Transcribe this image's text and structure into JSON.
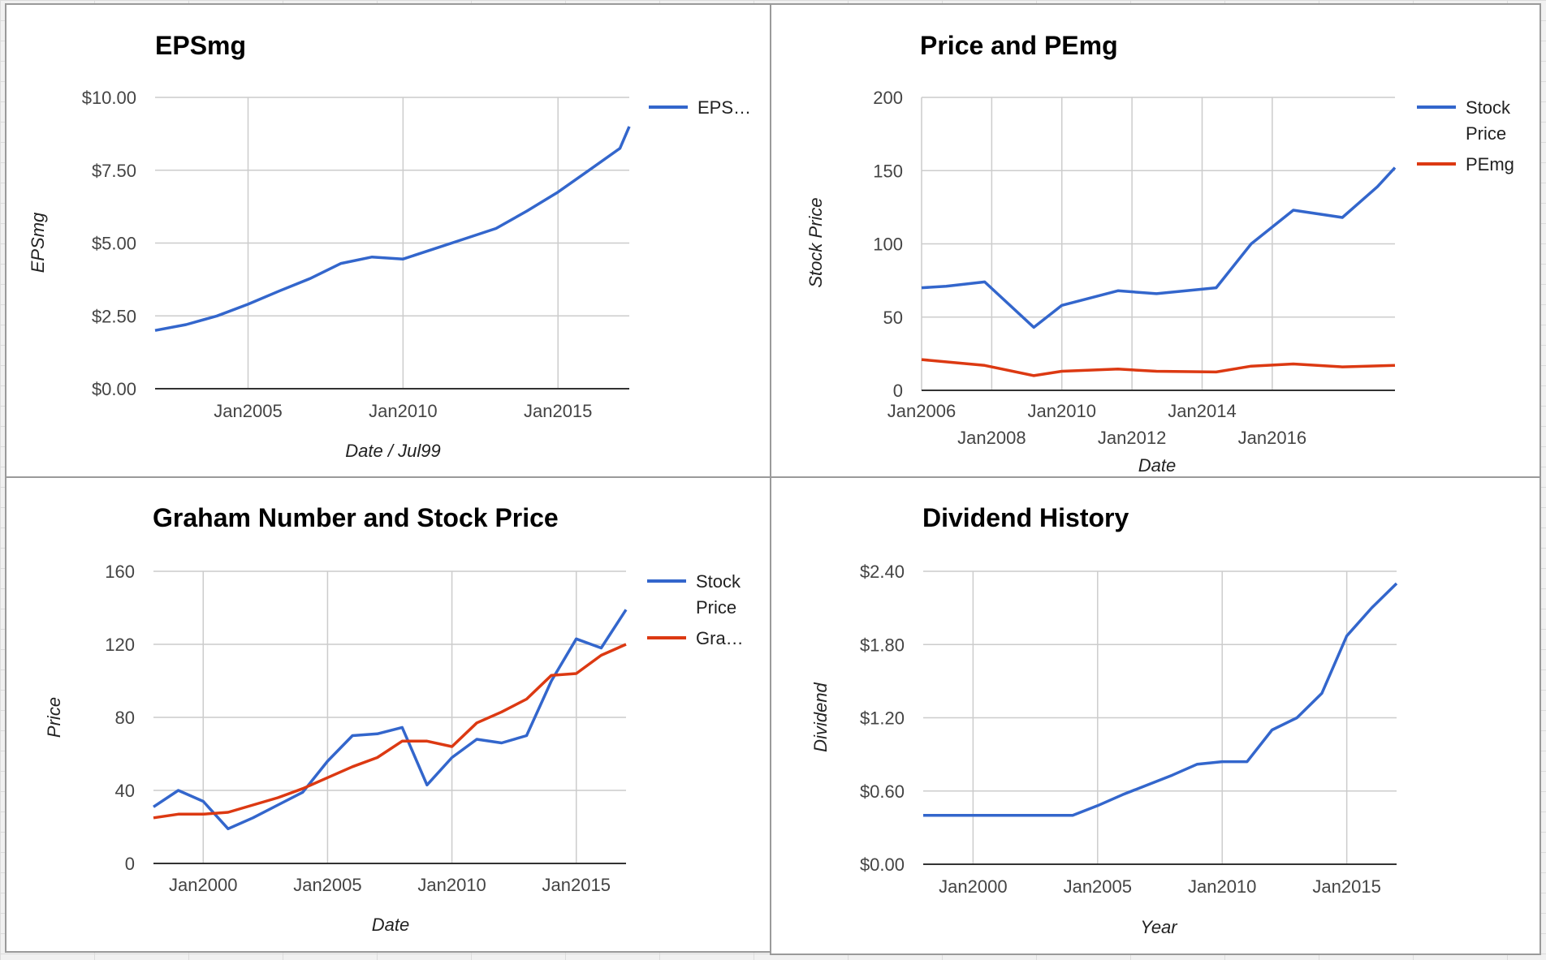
{
  "colors": {
    "blue": "#3366cc",
    "red": "#dc3912",
    "grid": "#cccccc",
    "axis": "#333333"
  },
  "chart_data": [
    {
      "type": "line",
      "title": "EPSmg",
      "xlabel": "Date / Jul99",
      "ylabel": "EPSmg",
      "x_ticks": [
        "Jan2005",
        "Jan2010",
        "Jan2015"
      ],
      "y_ticks": [
        "$0.00",
        "$2.50",
        "$5.00",
        "$7.50",
        "$10.00"
      ],
      "ylim": [
        0,
        10
      ],
      "legend_position": "right",
      "series": [
        {
          "name": "EPS…",
          "color": "#3366cc",
          "points": [
            [
              2002,
              2.0
            ],
            [
              2003,
              2.2
            ],
            [
              2004,
              2.5
            ],
            [
              2005,
              2.9
            ],
            [
              2006,
              3.35
            ],
            [
              2007,
              3.78
            ],
            [
              2008,
              4.3
            ],
            [
              2009,
              4.52
            ],
            [
              2010,
              4.45
            ],
            [
              2011,
              4.8
            ],
            [
              2012,
              5.15
            ],
            [
              2013,
              5.5
            ],
            [
              2014,
              6.1
            ],
            [
              2015,
              6.75
            ],
            [
              2016,
              7.5
            ],
            [
              2017,
              8.25
            ],
            [
              2017.3,
              9.0
            ]
          ]
        }
      ]
    },
    {
      "type": "line",
      "title": "Price and PEmg",
      "xlabel": "Date",
      "ylabel": "Stock Price",
      "x_ticks_row1": [
        "Jan2006",
        "Jan2010",
        "Jan2014"
      ],
      "x_ticks_row2": [
        "Jan2008",
        "Jan2012",
        "Jan2016"
      ],
      "y_ticks": [
        "0",
        "50",
        "100",
        "150",
        "200"
      ],
      "ylim": [
        0,
        200
      ],
      "legend_position": "right",
      "series": [
        {
          "name_lines": [
            "Stock",
            "Price"
          ],
          "color": "#3366cc",
          "points": [
            [
              2006,
              70
            ],
            [
              2006.7,
              71
            ],
            [
              2007.8,
              74
            ],
            [
              2009.2,
              43
            ],
            [
              2010,
              58
            ],
            [
              2011.6,
              68
            ],
            [
              2012.7,
              66
            ],
            [
              2014.4,
              70
            ],
            [
              2015.4,
              100
            ],
            [
              2016.6,
              123
            ],
            [
              2018,
              118
            ],
            [
              2019,
              139
            ],
            [
              2019.5,
              152
            ]
          ]
        },
        {
          "name": "PEmg",
          "color": "#dc3912",
          "points": [
            [
              2006,
              21
            ],
            [
              2007.8,
              17
            ],
            [
              2009.2,
              10
            ],
            [
              2010,
              13
            ],
            [
              2011.6,
              14.5
            ],
            [
              2012.7,
              13
            ],
            [
              2014.4,
              12.5
            ],
            [
              2015.4,
              16.5
            ],
            [
              2016.6,
              18
            ],
            [
              2018,
              16
            ],
            [
              2019.5,
              17
            ]
          ]
        }
      ]
    },
    {
      "type": "line",
      "title": "Graham Number and Stock Price",
      "xlabel": "Date",
      "ylabel": "Price",
      "x_ticks": [
        "Jan2000",
        "Jan2005",
        "Jan2010",
        "Jan2015"
      ],
      "y_ticks": [
        "0",
        "40",
        "80",
        "120",
        "160"
      ],
      "ylim": [
        0,
        160
      ],
      "legend_position": "right",
      "series": [
        {
          "name_lines": [
            "Stock",
            "Price"
          ],
          "color": "#3366cc",
          "points": [
            [
              1998,
              31
            ],
            [
              1999,
              40
            ],
            [
              2000,
              34
            ],
            [
              2001,
              19
            ],
            [
              2002,
              25
            ],
            [
              2003,
              32
            ],
            [
              2004,
              39
            ],
            [
              2005,
              56
            ],
            [
              2006,
              70
            ],
            [
              2007,
              71
            ],
            [
              2008,
              74.5
            ],
            [
              2009,
              43
            ],
            [
              2010,
              58
            ],
            [
              2011,
              68
            ],
            [
              2012,
              66
            ],
            [
              2013,
              70
            ],
            [
              2014,
              100
            ],
            [
              2015,
              123
            ],
            [
              2016,
              118
            ],
            [
              2017,
              139
            ]
          ]
        },
        {
          "name": "Gra…",
          "color": "#dc3912",
          "points": [
            [
              1998,
              25
            ],
            [
              1999,
              27
            ],
            [
              2000,
              27
            ],
            [
              2001,
              28
            ],
            [
              2002,
              32
            ],
            [
              2003,
              36
            ],
            [
              2004,
              41
            ],
            [
              2005,
              47
            ],
            [
              2006,
              53
            ],
            [
              2007,
              58
            ],
            [
              2008,
              67
            ],
            [
              2009,
              67
            ],
            [
              2010,
              64
            ],
            [
              2011,
              77
            ],
            [
              2012,
              83
            ],
            [
              2013,
              90
            ],
            [
              2014,
              103
            ],
            [
              2015,
              104
            ],
            [
              2016,
              114
            ],
            [
              2017,
              120
            ]
          ]
        }
      ]
    },
    {
      "type": "line",
      "title": "Dividend History",
      "xlabel": "Year",
      "ylabel": "Dividend",
      "x_ticks": [
        "Jan2000",
        "Jan2005",
        "Jan2010",
        "Jan2015"
      ],
      "y_ticks": [
        "$0.00",
        "$0.60",
        "$1.20",
        "$1.80",
        "$2.40"
      ],
      "ylim": [
        0,
        2.4
      ],
      "series": [
        {
          "name": "Dividend",
          "color": "#3366cc",
          "show_legend": false,
          "points": [
            [
              1998,
              0.4
            ],
            [
              1999,
              0.4
            ],
            [
              2000,
              0.4
            ],
            [
              2001,
              0.4
            ],
            [
              2002,
              0.4
            ],
            [
              2003,
              0.4
            ],
            [
              2004,
              0.4
            ],
            [
              2005,
              0.48
            ],
            [
              2006,
              0.57
            ],
            [
              2007,
              0.65
            ],
            [
              2008,
              0.73
            ],
            [
              2009,
              0.82
            ],
            [
              2010,
              0.84
            ],
            [
              2011,
              0.84
            ],
            [
              2012,
              1.1
            ],
            [
              2013,
              1.2
            ],
            [
              2014,
              1.4
            ],
            [
              2015,
              1.87
            ],
            [
              2016,
              2.1
            ],
            [
              2017,
              2.3
            ]
          ]
        }
      ]
    }
  ]
}
